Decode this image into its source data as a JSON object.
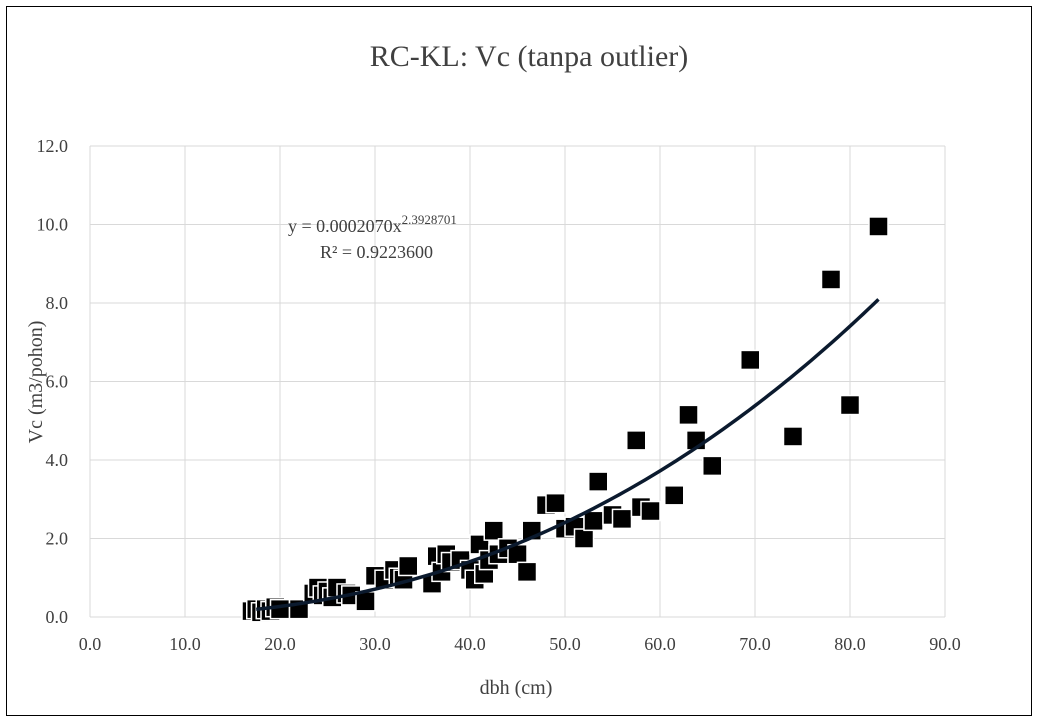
{
  "chart_data": {
    "type": "scatter",
    "title": "RC-KL:  Vc (tanpa outlier)",
    "xlabel": "dbh (cm)",
    "ylabel": "Vc  (m3/pohon)",
    "xlim": [
      0,
      90
    ],
    "ylim": [
      0,
      12
    ],
    "x_ticks": [
      "0.0",
      "10.0",
      "20.0",
      "30.0",
      "40.0",
      "50.0",
      "60.0",
      "70.0",
      "80.0",
      "90.0"
    ],
    "y_ticks": [
      "0.0",
      "2.0",
      "4.0",
      "6.0",
      "8.0",
      "10.0",
      "12.0"
    ],
    "grid": true,
    "trendline": {
      "type": "power",
      "a": 0.000207,
      "b": 2.3928701,
      "x_range": [
        17.5,
        83
      ],
      "equation_prefix": "y = 0.0002070x",
      "equation_exponent": "2.3928701",
      "r2_label": "R² = 0.9223600"
    },
    "points": [
      [
        17,
        0.15
      ],
      [
        17.5,
        0.2
      ],
      [
        18,
        0.12
      ],
      [
        18.5,
        0.2
      ],
      [
        19,
        0.15
      ],
      [
        19.5,
        0.25
      ],
      [
        20,
        0.2
      ],
      [
        22,
        0.2
      ],
      [
        23.5,
        0.6
      ],
      [
        24,
        0.75
      ],
      [
        24.5,
        0.55
      ],
      [
        25,
        0.65
      ],
      [
        25.5,
        0.5
      ],
      [
        26,
        0.75
      ],
      [
        27,
        0.6
      ],
      [
        27.5,
        0.55
      ],
      [
        29,
        0.4
      ],
      [
        30,
        1.05
      ],
      [
        31,
        0.95
      ],
      [
        32,
        1.2
      ],
      [
        32.5,
        1.0
      ],
      [
        33,
        0.95
      ],
      [
        33.5,
        1.3
      ],
      [
        36,
        0.85
      ],
      [
        36.5,
        1.55
      ],
      [
        37,
        1.15
      ],
      [
        37.5,
        1.6
      ],
      [
        38,
        1.4
      ],
      [
        39,
        1.45
      ],
      [
        40,
        1.2
      ],
      [
        40.5,
        0.95
      ],
      [
        41,
        1.85
      ],
      [
        41.5,
        1.1
      ],
      [
        42,
        1.45
      ],
      [
        42.5,
        2.2
      ],
      [
        43,
        1.6
      ],
      [
        44,
        1.75
      ],
      [
        45,
        1.6
      ],
      [
        46,
        1.15
      ],
      [
        46.5,
        2.2
      ],
      [
        48,
        2.85
      ],
      [
        49,
        2.9
      ],
      [
        50,
        2.25
      ],
      [
        51,
        2.3
      ],
      [
        52,
        2.0
      ],
      [
        53,
        2.45
      ],
      [
        53.5,
        3.45
      ],
      [
        55,
        2.6
      ],
      [
        56,
        2.5
      ],
      [
        57.5,
        4.5
      ],
      [
        58,
        2.8
      ],
      [
        59,
        2.7
      ],
      [
        61.5,
        3.1
      ],
      [
        63,
        5.15
      ],
      [
        63.8,
        4.5
      ],
      [
        65.5,
        3.85
      ],
      [
        69.5,
        6.55
      ],
      [
        74,
        4.6
      ],
      [
        78,
        8.6
      ],
      [
        80,
        5.4
      ],
      [
        83,
        9.95
      ]
    ]
  }
}
